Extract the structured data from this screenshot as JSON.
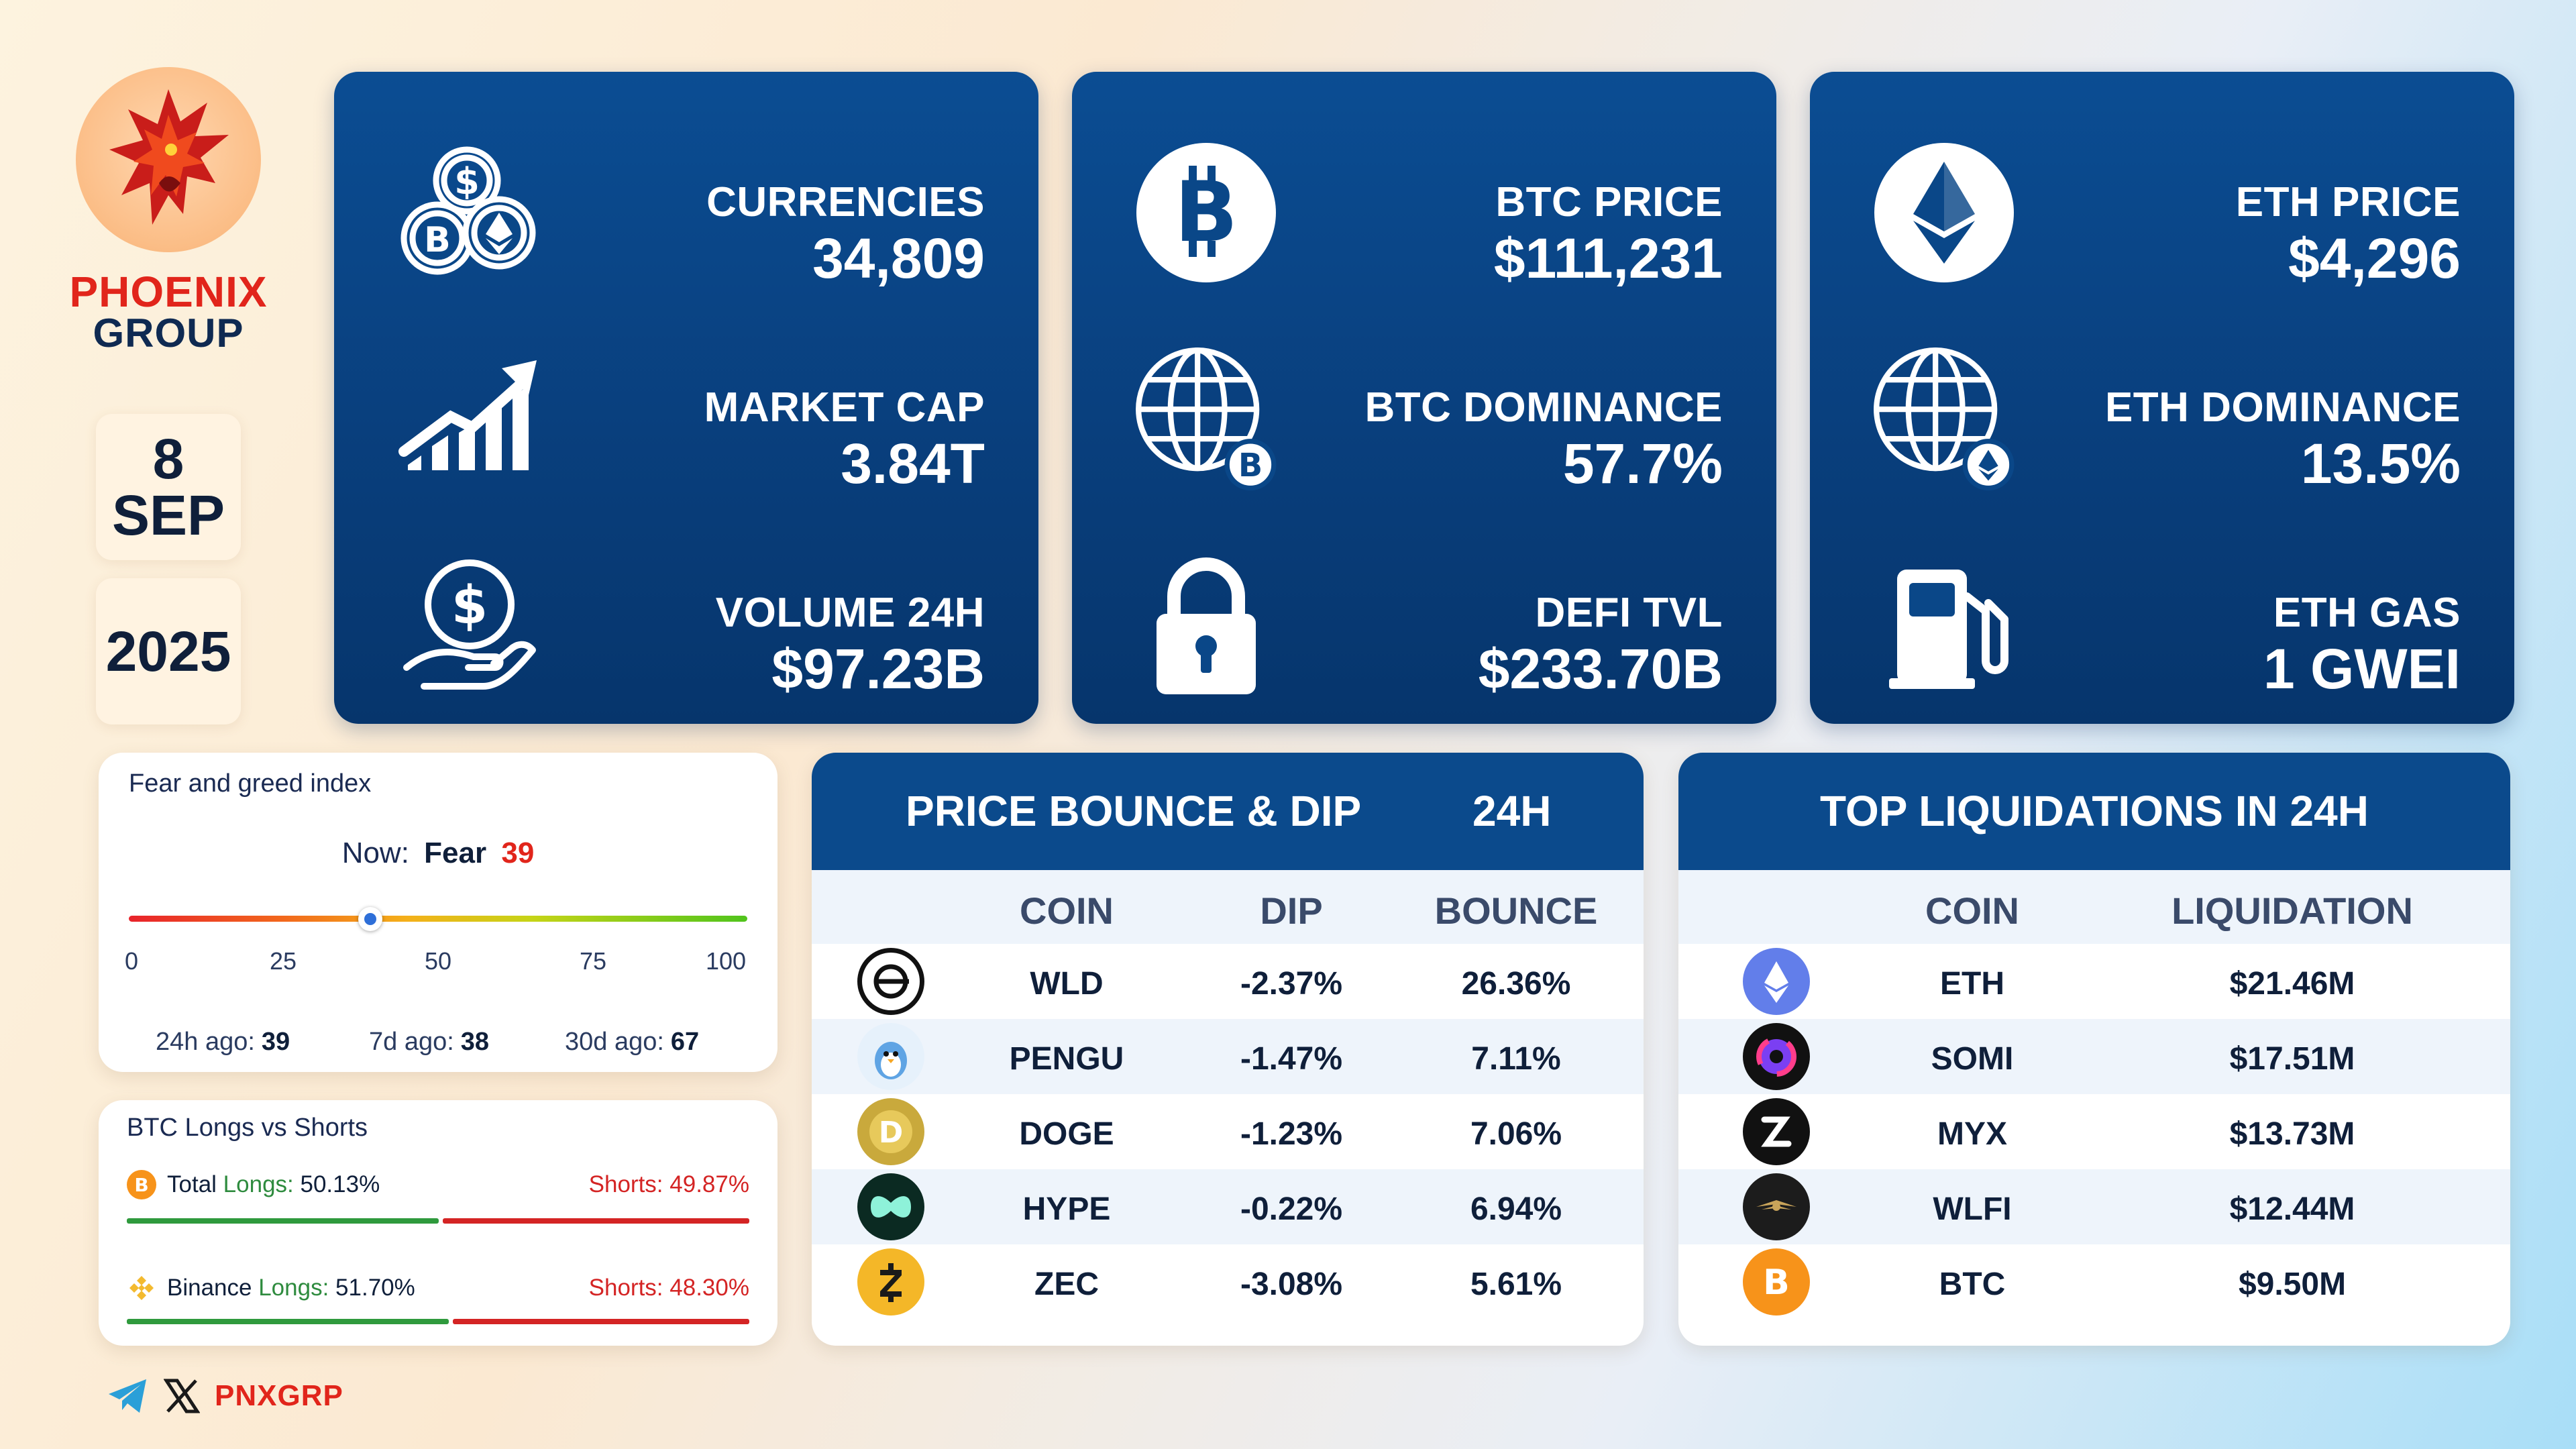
{
  "brand": {
    "line1": "PHOENIX",
    "line2": "GROUP",
    "handle": "PNXGRP"
  },
  "date": {
    "day": "8",
    "month": "SEP",
    "year": "2025"
  },
  "panels": [
    {
      "stats": [
        {
          "icon": "coins-stack-icon",
          "label": "CURRENCIES",
          "value": "34,809"
        },
        {
          "icon": "growth-chart-icon",
          "label": "MARKET CAP",
          "value": "3.84T"
        },
        {
          "icon": "dollar-hand-icon",
          "label": "VOLUME 24H",
          "value": "$97.23B"
        }
      ]
    },
    {
      "stats": [
        {
          "icon": "bitcoin-icon",
          "label": "BTC PRICE",
          "value": "$111,231"
        },
        {
          "icon": "globe-bitcoin-icon",
          "label": "BTC DOMINANCE",
          "value": "57.7%"
        },
        {
          "icon": "padlock-icon",
          "label": "DEFI TVL",
          "value": "$233.70B"
        }
      ]
    },
    {
      "stats": [
        {
          "icon": "ethereum-icon",
          "label": "ETH PRICE",
          "value": "$4,296"
        },
        {
          "icon": "globe-ethereum-icon",
          "label": "ETH DOMINANCE",
          "value": "13.5%"
        },
        {
          "icon": "gas-pump-icon",
          "label": "ETH GAS",
          "value": "1 GWEI"
        }
      ]
    }
  ],
  "fear_greed": {
    "title": "Fear and greed index",
    "now_label": "Now:",
    "now_state": "Fear",
    "now_value": "39",
    "level": 39,
    "ticks": [
      "0",
      "25",
      "50",
      "75",
      "100"
    ],
    "history": [
      {
        "label": "24h ago:",
        "value": "39"
      },
      {
        "label": "7d ago:",
        "value": "38"
      },
      {
        "label": "30d ago:",
        "value": "67"
      }
    ]
  },
  "longs_shorts": {
    "title": "BTC Longs vs Shorts",
    "rows": [
      {
        "icon": "bitcoin-icon",
        "name": "Total",
        "longs_label": "Longs:",
        "longs": "50.13%",
        "shorts_label": "Shorts:",
        "shorts": "49.87%",
        "long_fraction": 0.5013
      },
      {
        "icon": "binance-icon",
        "name": "Binance",
        "longs_label": "Longs:",
        "longs": "51.70%",
        "shorts_label": "Shorts:",
        "shorts": "48.30%",
        "long_fraction": 0.517
      }
    ]
  },
  "bounce_dip": {
    "title": "PRICE BOUNCE & DIP",
    "period": "24H",
    "columns": [
      "COIN",
      "DIP",
      "BOUNCE"
    ],
    "rows": [
      {
        "icon": "worldcoin-icon",
        "coin": "WLD",
        "dip": "-2.37%",
        "bounce": "26.36%"
      },
      {
        "icon": "pengu-icon",
        "coin": "PENGU",
        "dip": "-1.47%",
        "bounce": "7.11%"
      },
      {
        "icon": "dogecoin-icon",
        "coin": "DOGE",
        "dip": "-1.23%",
        "bounce": "7.06%"
      },
      {
        "icon": "hyperliquid-icon",
        "coin": "HYPE",
        "dip": "-0.22%",
        "bounce": "6.94%"
      },
      {
        "icon": "zcash-icon",
        "coin": "ZEC",
        "dip": "-3.08%",
        "bounce": "5.61%"
      }
    ]
  },
  "liquidations": {
    "title": "TOP LIQUIDATIONS IN 24H",
    "columns": [
      "COIN",
      "LIQUIDATION"
    ],
    "rows": [
      {
        "icon": "ethereum-icon",
        "coin": "ETH",
        "value": "$21.46M"
      },
      {
        "icon": "somnia-icon",
        "coin": "SOMI",
        "value": "$17.51M"
      },
      {
        "icon": "myx-icon",
        "coin": "MYX",
        "value": "$13.73M"
      },
      {
        "icon": "wlfi-icon",
        "coin": "WLFI",
        "value": "$12.44M"
      },
      {
        "icon": "bitcoin-icon",
        "coin": "BTC",
        "value": "$9.50M"
      }
    ]
  },
  "colors": {
    "panel_blue": "#0b4a8c",
    "accent_red": "#e1251b",
    "long_green": "#2f9a3d",
    "short_red": "#d42424"
  }
}
